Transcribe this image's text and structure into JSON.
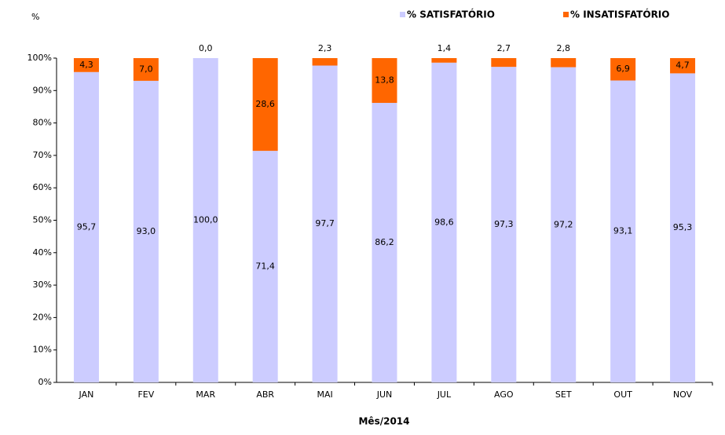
{
  "chart_data": {
    "type": "stacked_bar",
    "y_axis_label": "%",
    "x_axis_label": "Mês/2014",
    "categories": [
      "JAN",
      "FEV",
      "MAR",
      "ABR",
      "MAI",
      "JUN",
      "JUL",
      "AGO",
      "SET",
      "OUT",
      "NOV"
    ],
    "series": [
      {
        "name": "% SATISFATÓRIO",
        "color": "#ccccff",
        "values": [
          95.7,
          93.0,
          100.0,
          71.4,
          97.7,
          86.2,
          98.6,
          97.3,
          97.2,
          93.1,
          95.3
        ],
        "value_labels": [
          "95,7",
          "93,0",
          "100,0",
          "71,4",
          "97,7",
          "86,2",
          "98,6",
          "97,3",
          "97,2",
          "93,1",
          "95,3"
        ]
      },
      {
        "name": "% INSATISFATÓRIO",
        "color": "#ff6600",
        "values": [
          4.3,
          7.0,
          0.0,
          28.6,
          2.3,
          13.8,
          1.4,
          2.7,
          2.8,
          6.9,
          4.7
        ],
        "value_labels": [
          "4,3",
          "7,0",
          "0,0",
          "28,6",
          "2,3",
          "13,8",
          "1,4",
          "2,7",
          "2,8",
          "6,9",
          "4,7"
        ]
      }
    ],
    "ylim": [
      0,
      100
    ],
    "yticks": [
      {
        "value": 0,
        "label": "0%"
      },
      {
        "value": 10,
        "label": "10%"
      },
      {
        "value": 20,
        "label": "20%"
      },
      {
        "value": 30,
        "label": "30%"
      },
      {
        "value": 40,
        "label": "40%"
      },
      {
        "value": 50,
        "label": "50%"
      },
      {
        "value": 60,
        "label": "60%"
      },
      {
        "value": 70,
        "label": "70%"
      },
      {
        "value": 80,
        "label": "80%"
      },
      {
        "value": 90,
        "label": "90%"
      },
      {
        "value": 100,
        "label": "100%"
      }
    ],
    "legend": "top-right"
  }
}
